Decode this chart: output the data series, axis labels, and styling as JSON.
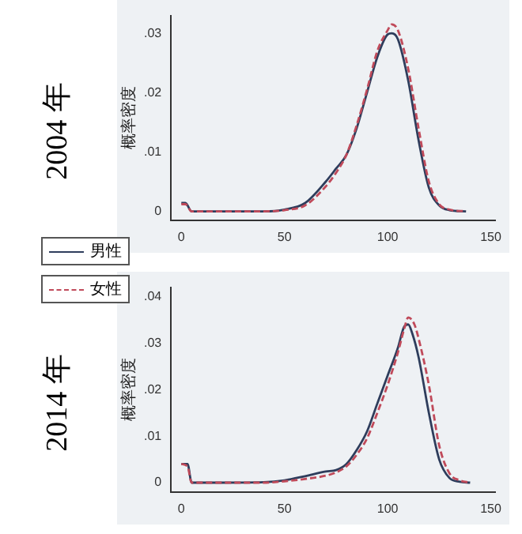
{
  "chart_data": [
    {
      "type": "line",
      "title": "2004 年",
      "ylabel": "概率密度",
      "legend": "bottom left",
      "marker": "none",
      "xlim": [
        -5,
        152
      ],
      "xticks": [
        0,
        50,
        100,
        150
      ],
      "ylim": [
        -0.0015,
        0.033
      ],
      "yticks": [
        0,
        {
          "value": 0.01,
          "label": ".01"
        },
        {
          "value": 0.02,
          "label": ".02"
        },
        {
          "value": 0.03,
          "label": ".03"
        }
      ],
      "series": [
        {
          "name": "男性",
          "color": "#2e3d5c",
          "line_style": "solid",
          "x": [
            0,
            2,
            5,
            20,
            40,
            50,
            60,
            70,
            75,
            80,
            85,
            90,
            95,
            100,
            102,
            105,
            110,
            115,
            120,
            125,
            130,
            138
          ],
          "values": [
            0.0014,
            0.0014,
            0,
            0,
            0,
            0.0003,
            0.0014,
            0.005,
            0.0072,
            0.0095,
            0.014,
            0.02,
            0.026,
            0.0298,
            0.03,
            0.029,
            0.022,
            0.012,
            0.004,
            0.001,
            0.0002,
            0
          ]
        },
        {
          "color": "#c04a5a",
          "line_style": "dashed",
          "x": [
            0,
            2,
            5,
            20,
            40,
            50,
            60,
            70,
            75,
            80,
            85,
            90,
            95,
            100,
            102,
            105,
            110,
            115,
            120,
            125,
            130,
            138
          ],
          "values": [
            0.0012,
            0.0012,
            0,
            0,
            0,
            0.0002,
            0.001,
            0.0042,
            0.0065,
            0.0095,
            0.0145,
            0.0205,
            0.027,
            0.0305,
            0.0315,
            0.0305,
            0.024,
            0.014,
            0.005,
            0.0012,
            0.0003,
            0
          ]
        }
      ]
    },
    {
      "type": "line",
      "title": "2014 年",
      "ylabel": "概率密度",
      "legend": "top left",
      "marker": "none",
      "xlim": [
        -5,
        152
      ],
      "xticks": [
        0,
        50,
        100,
        150
      ],
      "ylim": [
        -0.002,
        0.042
      ],
      "yticks": [
        0,
        {
          "value": 0.01,
          "label": ".01"
        },
        {
          "value": 0.02,
          "label": ".02"
        },
        {
          "value": 0.03,
          "label": ".03"
        },
        {
          "value": 0.04,
          "label": ".04"
        }
      ],
      "series": [
        {
          "color": "#2e3d5c",
          "line_style": "solid",
          "x": [
            0,
            3,
            5,
            20,
            40,
            50,
            60,
            70,
            75,
            80,
            85,
            90,
            95,
            100,
            105,
            108,
            110,
            112,
            115,
            120,
            125,
            130,
            135,
            140
          ],
          "values": [
            0.004,
            0.004,
            0,
            0,
            0.0001,
            0.0005,
            0.0014,
            0.0024,
            0.0027,
            0.004,
            0.007,
            0.011,
            0.017,
            0.023,
            0.029,
            0.0335,
            0.034,
            0.032,
            0.027,
            0.015,
            0.005,
            0.001,
            0.0002,
            0
          ]
        },
        {
          "name": "女性",
          "color": "#c04a5a",
          "line_style": "dashed",
          "x": [
            0,
            3,
            5,
            20,
            40,
            50,
            60,
            70,
            75,
            80,
            85,
            90,
            95,
            100,
            105,
            108,
            110,
            113,
            115,
            120,
            125,
            130,
            135,
            140
          ],
          "values": [
            0.004,
            0.0035,
            0,
            0,
            0,
            0.0003,
            0.0008,
            0.0015,
            0.0022,
            0.0035,
            0.006,
            0.0095,
            0.015,
            0.021,
            0.028,
            0.033,
            0.0355,
            0.034,
            0.031,
            0.021,
            0.008,
            0.002,
            0.0005,
            0
          ]
        }
      ]
    }
  ]
}
